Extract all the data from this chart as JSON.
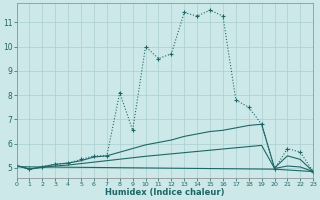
{
  "xlabel": "Humidex (Indice chaleur)",
  "bg_color": "#cce8e8",
  "grid_color": "#aacfcf",
  "line_color": "#1e6666",
  "xlim": [
    0,
    23
  ],
  "ylim": [
    4.6,
    11.8
  ],
  "xtick_vals": [
    0,
    1,
    2,
    3,
    4,
    5,
    6,
    7,
    8,
    9,
    10,
    11,
    12,
    13,
    14,
    15,
    16,
    17,
    18,
    19,
    20,
    21,
    22,
    23
  ],
  "ytick_vals": [
    5,
    6,
    7,
    8,
    9,
    10,
    11
  ],
  "main_x": [
    0,
    1,
    2,
    3,
    4,
    5,
    6,
    7,
    8,
    9,
    10,
    11,
    12,
    13,
    14,
    15,
    16,
    17,
    18,
    19,
    20,
    21,
    22,
    23
  ],
  "main_y": [
    5.1,
    4.95,
    5.05,
    5.15,
    5.2,
    5.35,
    5.5,
    5.5,
    8.1,
    6.55,
    10.0,
    9.5,
    9.7,
    11.4,
    11.25,
    11.5,
    11.25,
    7.8,
    7.5,
    6.8,
    4.95,
    5.8,
    5.65,
    4.85
  ],
  "line2_x": [
    0,
    1,
    2,
    3,
    4,
    5,
    6,
    7,
    8,
    9,
    10,
    11,
    12,
    13,
    14,
    15,
    16,
    17,
    18,
    19,
    20,
    21,
    22,
    23
  ],
  "line2_y": [
    5.1,
    4.95,
    5.05,
    5.15,
    5.2,
    5.3,
    5.45,
    5.5,
    5.65,
    5.8,
    5.95,
    6.05,
    6.15,
    6.3,
    6.4,
    6.5,
    6.55,
    6.65,
    6.75,
    6.8,
    5.0,
    5.5,
    5.35,
    4.85
  ],
  "line3_x": [
    0,
    1,
    2,
    3,
    4,
    5,
    6,
    7,
    8,
    9,
    10,
    11,
    12,
    13,
    14,
    15,
    16,
    17,
    18,
    19,
    20,
    21,
    22,
    23
  ],
  "line3_y": [
    5.1,
    4.95,
    5.02,
    5.08,
    5.12,
    5.18,
    5.24,
    5.3,
    5.36,
    5.42,
    5.48,
    5.53,
    5.58,
    5.63,
    5.68,
    5.73,
    5.78,
    5.83,
    5.88,
    5.93,
    4.98,
    5.08,
    5.04,
    4.85
  ],
  "line4_x": [
    0,
    10,
    20,
    23
  ],
  "line4_y": [
    5.05,
    5.0,
    4.95,
    4.85
  ]
}
